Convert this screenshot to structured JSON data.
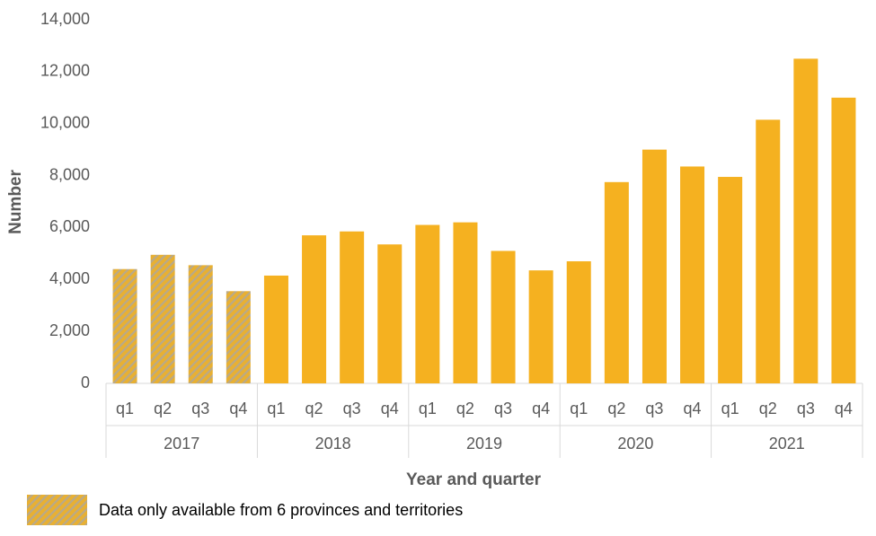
{
  "chart_data": {
    "type": "bar",
    "y_label": "Number",
    "x_label": "Year and quarter",
    "categories": [
      "q1",
      "q2",
      "q3",
      "q4",
      "q1",
      "q2",
      "q3",
      "q4",
      "q1",
      "q2",
      "q3",
      "q4",
      "q1",
      "q2",
      "q3",
      "q4",
      "q1",
      "q2",
      "q3",
      "q4"
    ],
    "category_groups": [
      "2017",
      "2018",
      "2019",
      "2020",
      "2021"
    ],
    "values": [
      4400,
      4950,
      4550,
      3550,
      4150,
      5700,
      5850,
      5350,
      6100,
      6200,
      5100,
      4350,
      4700,
      7750,
      9000,
      8350,
      7950,
      10150,
      12500,
      11000
    ],
    "color": "#f5b120",
    "hatched": [
      true,
      true,
      true,
      true,
      false,
      false,
      false,
      false,
      false,
      false,
      false,
      false,
      false,
      false,
      false,
      false,
      false,
      false,
      false,
      false
    ],
    "hatch_legend": "Data only available from 6 provinces and territories",
    "ylim": [
      0,
      14000
    ],
    "yticks": [
      0,
      {
        "value": 2000,
        "label": "2,000"
      },
      {
        "value": 4000,
        "label": "4,000"
      },
      {
        "value": 6000,
        "label": "6,000"
      },
      {
        "value": 8000,
        "label": "8,000"
      },
      {
        "value": 10000,
        "label": "10,000"
      },
      {
        "value": 12000,
        "label": "12,000"
      },
      {
        "value": 14000,
        "label": "14,000"
      }
    ],
    "grid": false
  }
}
